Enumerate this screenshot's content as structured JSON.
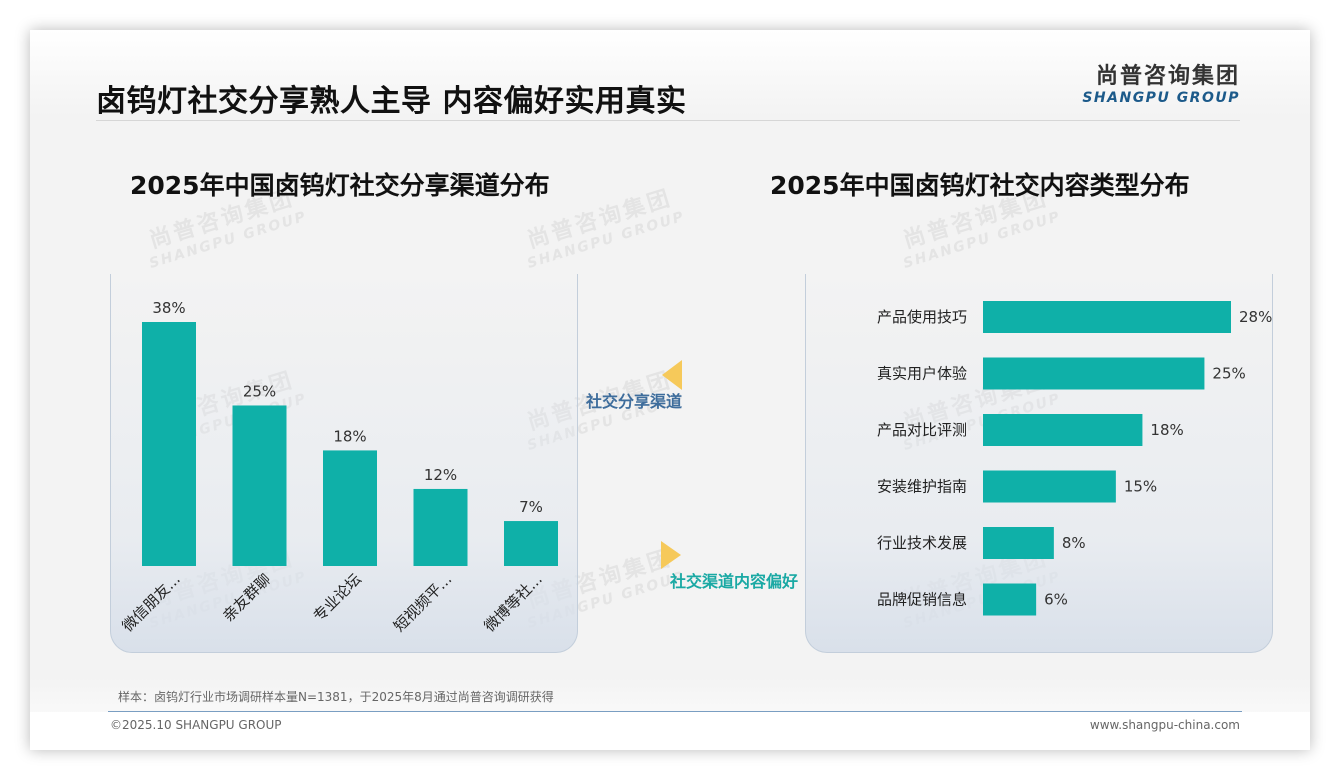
{
  "header": {
    "title": "卤钨灯社交分享熟人主导 内容偏好实用真实",
    "logo_cn": "尚普咨询集团",
    "logo_en": "SHANGPU GROUP"
  },
  "watermark": {
    "cn": "尚普咨询集团",
    "en": "SHANGPU GROUP"
  },
  "connectors": {
    "first": "社交分享渠道",
    "second": "社交渠道内容偏好"
  },
  "footer": {
    "note": "样本：卤钨灯行业市场调研样本量N=1381，于2025年8月通过尚普咨询调研获得",
    "copyright": "©2025.10 SHANGPU GROUP",
    "website": "www.shangpu-china.com"
  },
  "colors": {
    "bar": "#0fb0a8",
    "accent": "#f6c95a",
    "brand": "#1c5a8a"
  },
  "chart_data": [
    {
      "type": "bar",
      "orientation": "vertical",
      "title": "2025年中国卤钨灯社交分享渠道分布",
      "categories": [
        "微信朋友...",
        "亲友群聊",
        "专业论坛",
        "短视频平...",
        "微博等社..."
      ],
      "values": [
        38,
        25,
        18,
        12,
        7
      ],
      "value_labels": [
        "38%",
        "25%",
        "18%",
        "12%",
        "7%"
      ],
      "unit": "%",
      "ylim": [
        0,
        38
      ],
      "grid": false
    },
    {
      "type": "bar",
      "orientation": "horizontal",
      "title": "2025年中国卤钨灯社交内容类型分布",
      "categories": [
        "产品使用技巧",
        "真实用户体验",
        "产品对比评测",
        "安装维护指南",
        "行业技术发展",
        "品牌促销信息"
      ],
      "values": [
        28,
        25,
        18,
        15,
        8,
        6
      ],
      "value_labels": [
        "28%",
        "25%",
        "18%",
        "15%",
        "8%",
        "6%"
      ],
      "unit": "%",
      "xlim": [
        0,
        28
      ],
      "grid": false
    }
  ]
}
